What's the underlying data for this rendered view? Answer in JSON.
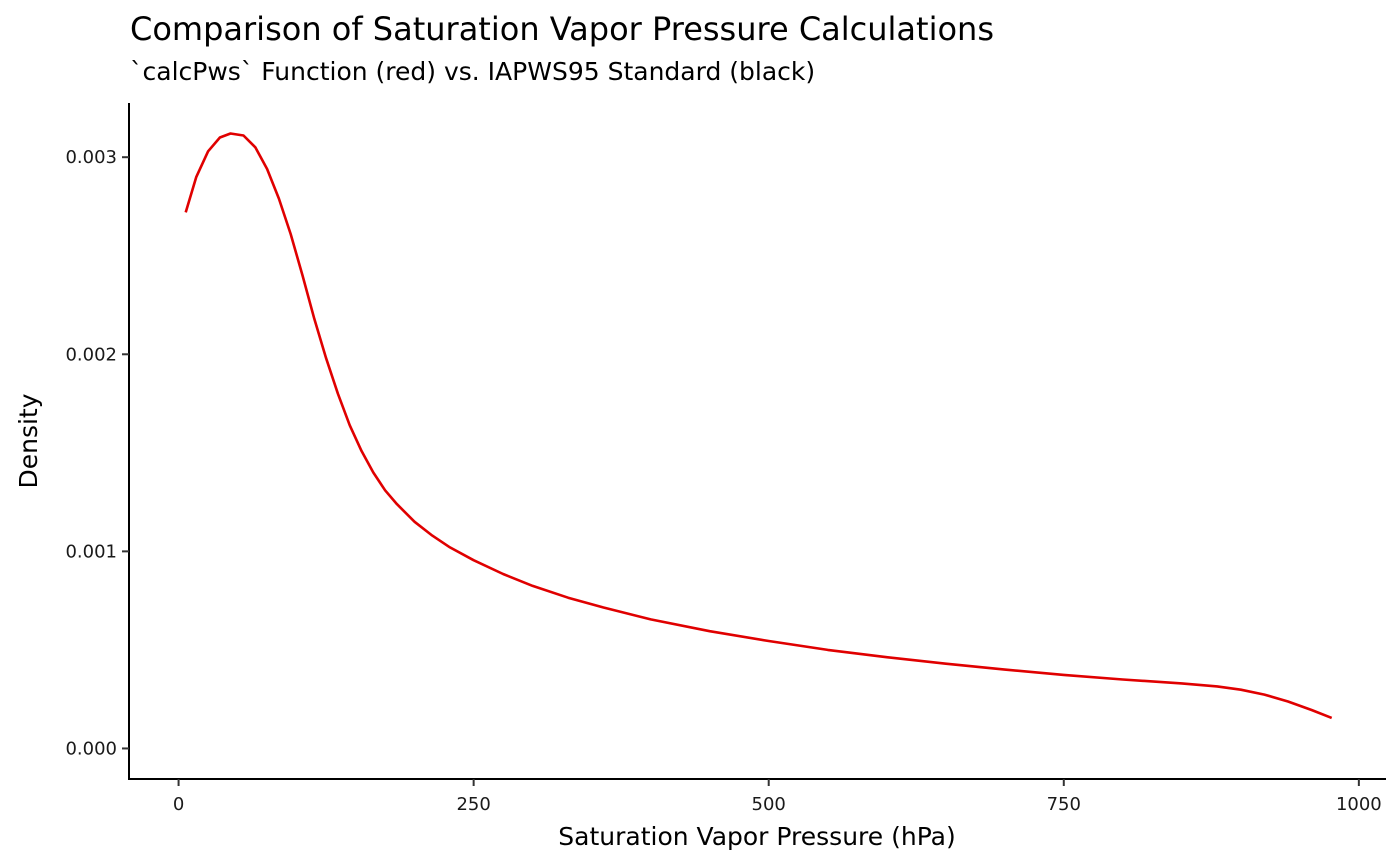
{
  "chart_data": {
    "type": "line",
    "title": "Comparison of Saturation Vapor Pressure Calculations",
    "subtitle": "`calcPws` Function (red) vs. IAPWS95 Standard (black)",
    "xlabel": "Saturation Vapor Pressure (hPa)",
    "ylabel": "Density",
    "xlim": [
      -42,
      1023
    ],
    "ylim": [
      -0.000155,
      0.003275
    ],
    "x_ticks": [
      0,
      250,
      500,
      750,
      1000
    ],
    "x_tick_labels": [
      "0",
      "250",
      "500",
      "750",
      "1000"
    ],
    "y_ticks": [
      0.0,
      0.001,
      0.002,
      0.003
    ],
    "y_tick_labels": [
      "0.000",
      "0.001",
      "0.002",
      "0.003"
    ],
    "grid": false,
    "legend": "none",
    "series": [
      {
        "color": "#e00000",
        "x": [
          6,
          15,
          25,
          35,
          44,
          55,
          65,
          75,
          85,
          95,
          105,
          115,
          125,
          135,
          145,
          155,
          165,
          175,
          185,
          200,
          215,
          230,
          250,
          275,
          300,
          330,
          360,
          400,
          450,
          500,
          550,
          600,
          650,
          700,
          750,
          800,
          850,
          880,
          900,
          920,
          940,
          960,
          977
        ],
        "y": [
          0.00272,
          0.0029,
          0.00303,
          0.0031,
          0.00312,
          0.00311,
          0.00305,
          0.00294,
          0.00279,
          0.00261,
          0.0024,
          0.00218,
          0.00198,
          0.0018,
          0.00164,
          0.00151,
          0.0014,
          0.00131,
          0.00124,
          0.00115,
          0.00108,
          0.00102,
          0.000955,
          0.000885,
          0.000825,
          0.000765,
          0.000715,
          0.000655,
          0.000595,
          0.000545,
          0.0005,
          0.000463,
          0.00043,
          0.0004,
          0.000373,
          0.00035,
          0.00033,
          0.000315,
          0.000298,
          0.000273,
          0.000238,
          0.000195,
          0.000155
        ]
      }
    ]
  }
}
